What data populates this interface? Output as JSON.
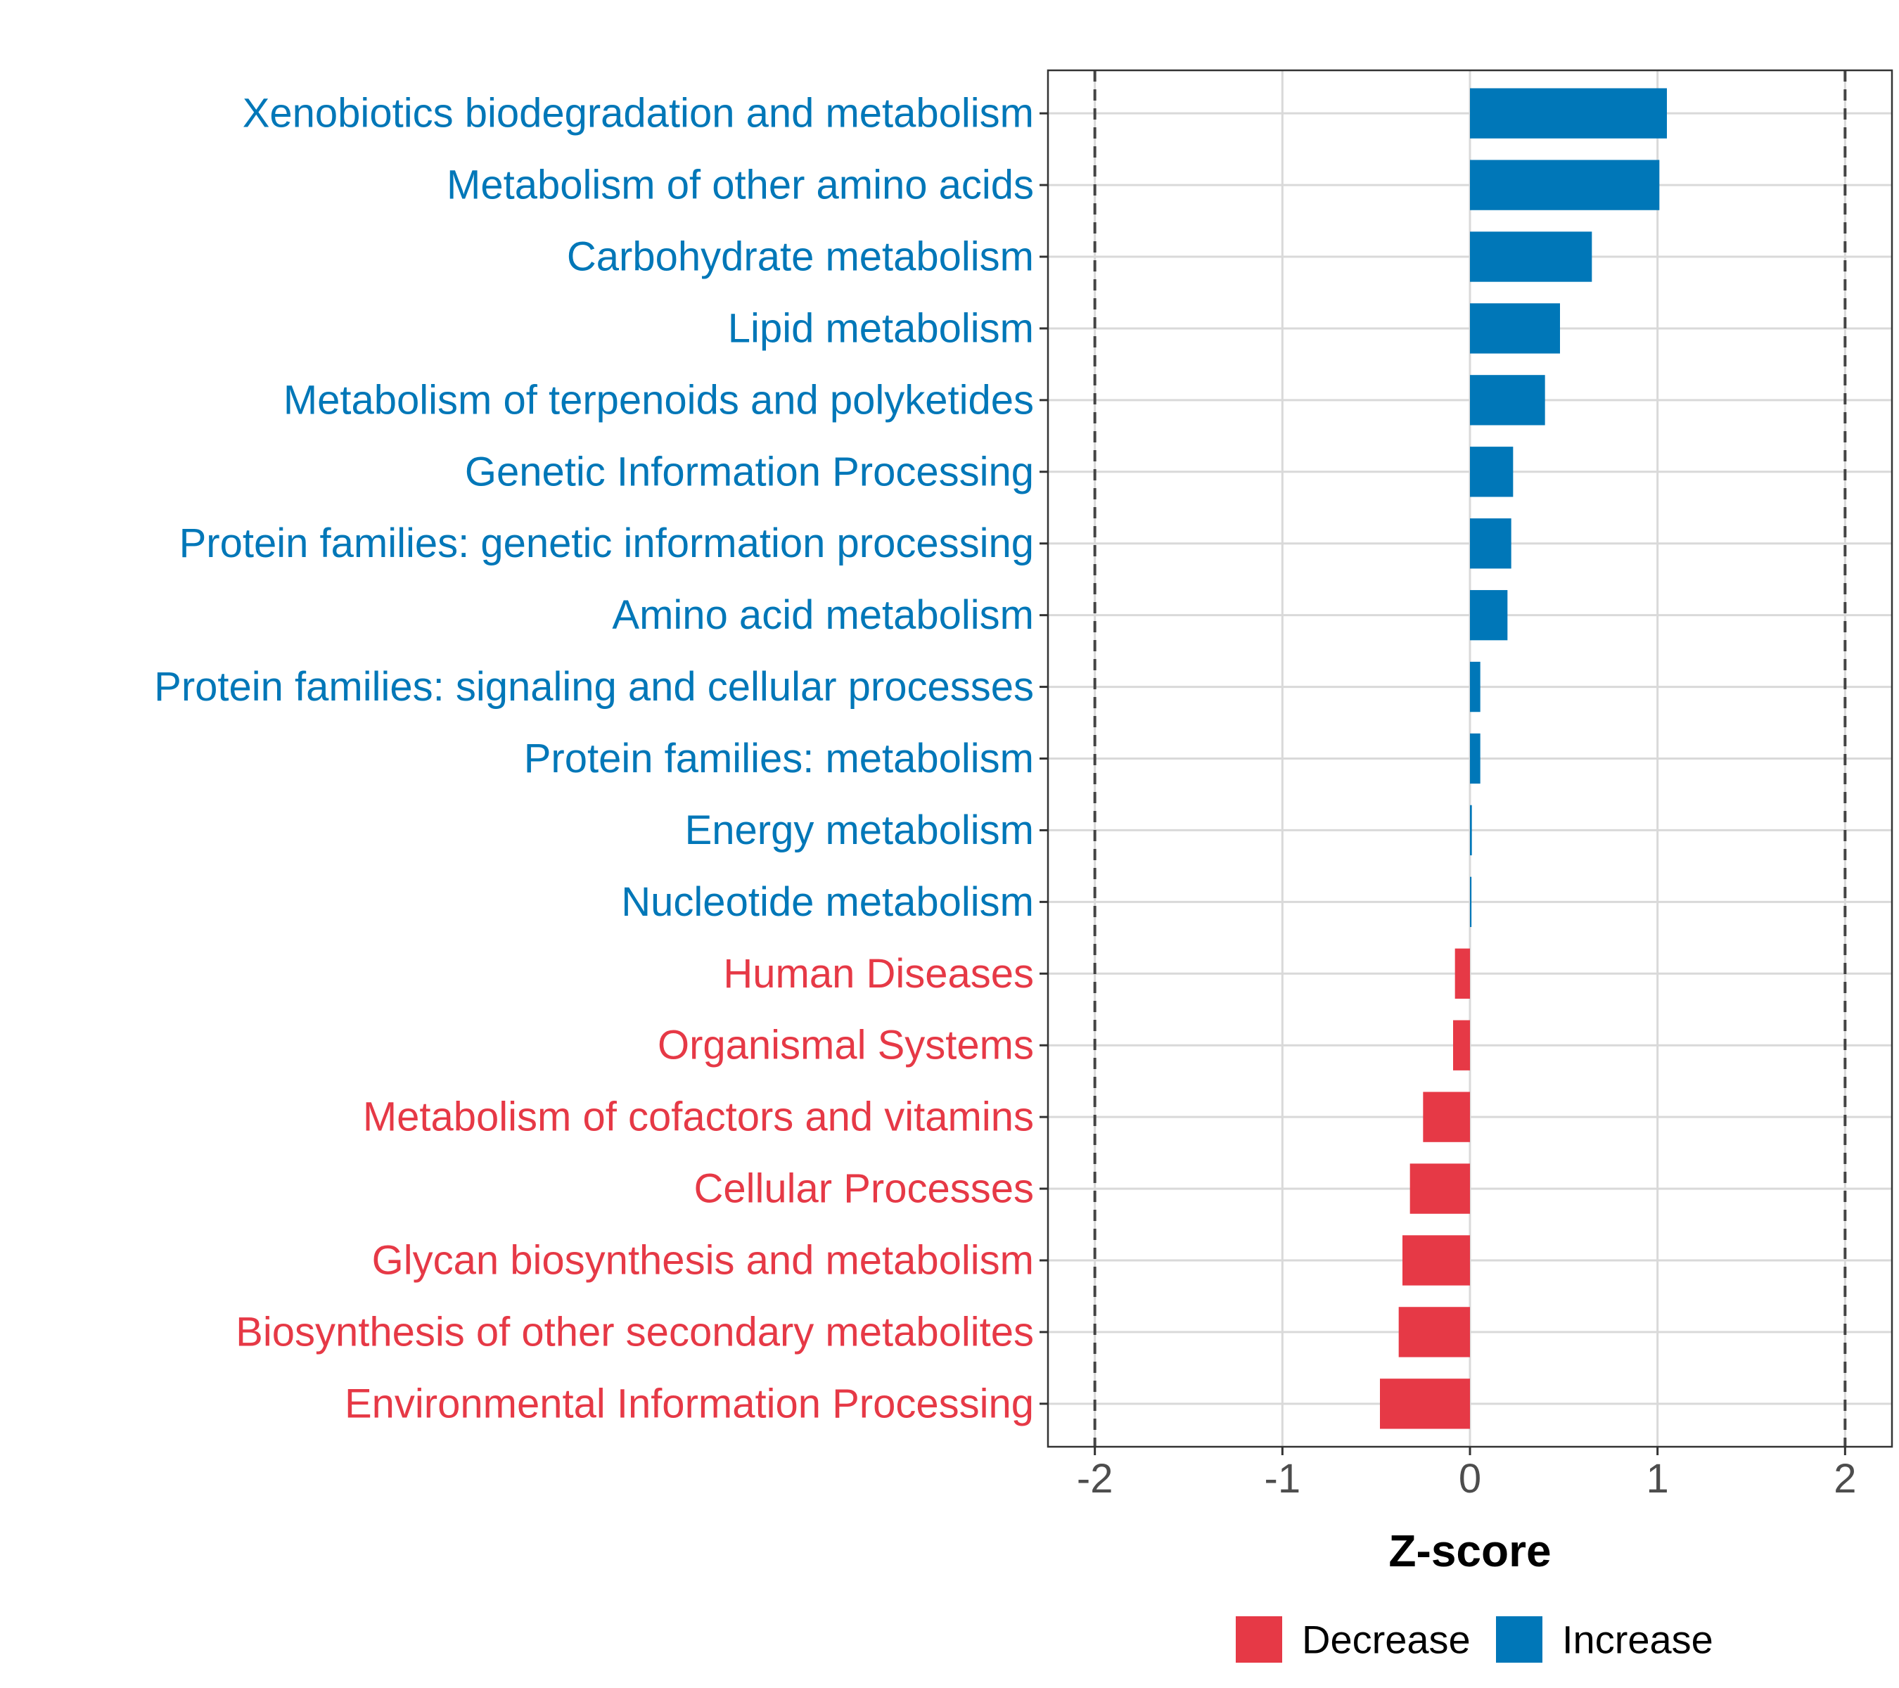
{
  "chart_data": {
    "type": "bar",
    "orientation": "horizontal",
    "title": "",
    "xlabel": "Z-score",
    "ylabel": "",
    "xlim": [
      -2.25,
      2.25
    ],
    "xticks": [
      -2,
      -1,
      0,
      1,
      2
    ],
    "tick_labels": [
      "-2",
      "-1",
      "0",
      "1",
      "2"
    ],
    "reference_lines": [
      -2,
      2
    ],
    "grid": true,
    "legend_position": "bottom",
    "colors": {
      "Decrease": "#E63946",
      "Increase": "#0077B8"
    },
    "legend": [
      {
        "name": "Decrease",
        "color": "#E63946"
      },
      {
        "name": "Increase",
        "color": "#0077B8"
      }
    ],
    "categories": [
      "Xenobiotics biodegradation and metabolism",
      "Metabolism of other amino acids",
      "Carbohydrate metabolism",
      "Lipid metabolism",
      "Metabolism of terpenoids and polyketides",
      "Genetic Information Processing",
      "Protein families: genetic information processing",
      "Amino acid metabolism",
      "Protein families: signaling and cellular processes",
      "Protein families: metabolism",
      "Energy metabolism",
      "Nucleotide metabolism",
      "Human Diseases",
      "Organismal Systems",
      "Metabolism of cofactors and vitamins",
      "Cellular Processes",
      "Glycan biosynthesis and metabolism",
      "Biosynthesis of other secondary metabolites",
      "Environmental Information Processing"
    ],
    "values": [
      1.05,
      1.01,
      0.65,
      0.48,
      0.4,
      0.23,
      0.22,
      0.2,
      0.055,
      0.055,
      0.01,
      0.008,
      -0.08,
      -0.09,
      -0.25,
      -0.32,
      -0.36,
      -0.38,
      -0.48
    ],
    "groups": [
      "Increase",
      "Increase",
      "Increase",
      "Increase",
      "Increase",
      "Increase",
      "Increase",
      "Increase",
      "Increase",
      "Increase",
      "Increase",
      "Increase",
      "Decrease",
      "Decrease",
      "Decrease",
      "Decrease",
      "Decrease",
      "Decrease",
      "Decrease"
    ]
  }
}
